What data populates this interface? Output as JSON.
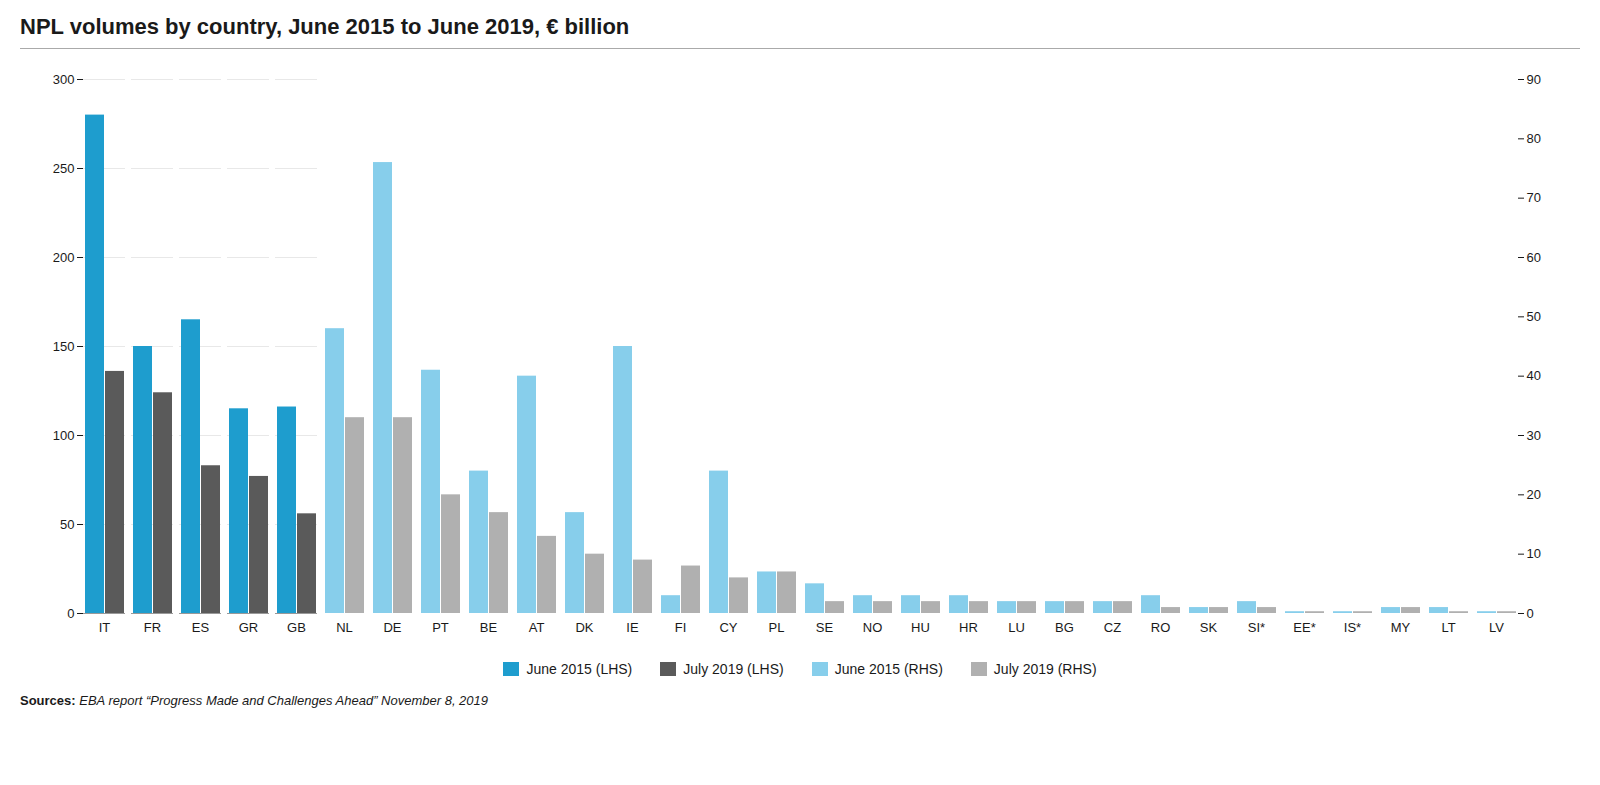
{
  "chart_data": {
    "type": "bar",
    "title": "NPL volumes by country, June 2015 to June 2019, € billion",
    "categories": [
      "IT",
      "FR",
      "ES",
      "GR",
      "GB",
      "NL",
      "DE",
      "PT",
      "BE",
      "AT",
      "DK",
      "IE",
      "FI",
      "CY",
      "PL",
      "SE",
      "NO",
      "HU",
      "HR",
      "LU",
      "BG",
      "CZ",
      "RO",
      "SK",
      "SI*",
      "EE*",
      "IS*",
      "MY",
      "LT",
      "LV"
    ],
    "series": [
      {
        "name": "June 2015 (LHS)",
        "color": "#1e9dce",
        "values": [
          280,
          150,
          165,
          115,
          116,
          null,
          null,
          null,
          null,
          null,
          null,
          null,
          null,
          null,
          null,
          null,
          null,
          null,
          null,
          null,
          null,
          null,
          null,
          null,
          null,
          null,
          null,
          null,
          null,
          null
        ]
      },
      {
        "name": "July 2019 (LHS)",
        "color": "#5a5a5a",
        "values": [
          136,
          124,
          83,
          77,
          56,
          null,
          null,
          null,
          null,
          null,
          null,
          null,
          null,
          null,
          null,
          null,
          null,
          null,
          null,
          null,
          null,
          null,
          null,
          null,
          null,
          null,
          null,
          null,
          null,
          null
        ]
      },
      {
        "name": "June 2015 (RHS)",
        "color": "#87ceeb",
        "axis": "y2",
        "values": [
          null,
          null,
          null,
          null,
          null,
          48,
          76,
          41,
          24,
          40,
          17,
          45,
          3,
          24,
          7,
          5,
          3,
          3,
          3,
          2,
          2,
          2,
          3,
          1,
          2,
          0.3,
          0.3,
          1,
          1,
          0.3
        ]
      },
      {
        "name": "July 2019 (RHS)",
        "color": "#b0b0b0",
        "axis": "y2",
        "values": [
          null,
          null,
          null,
          null,
          null,
          33,
          33,
          20,
          17,
          13,
          10,
          9,
          8,
          6,
          7,
          2,
          2,
          2,
          2,
          2,
          2,
          2,
          1,
          1,
          1,
          0.3,
          0.3,
          1,
          0.3,
          0.3
        ]
      }
    ],
    "ylim": [
      0,
      300
    ],
    "yticks": [
      0,
      50,
      100,
      150,
      200,
      250,
      300
    ],
    "y2lim": [
      0,
      90
    ],
    "y2ticks": [
      0,
      10,
      20,
      30,
      40,
      50,
      60,
      70,
      80,
      90
    ],
    "grid": true,
    "legend": "bottom",
    "annotations": [
      "Sources:",
      "EBA report “Progress Made and Challenges Ahead” November 8, 2019"
    ]
  }
}
